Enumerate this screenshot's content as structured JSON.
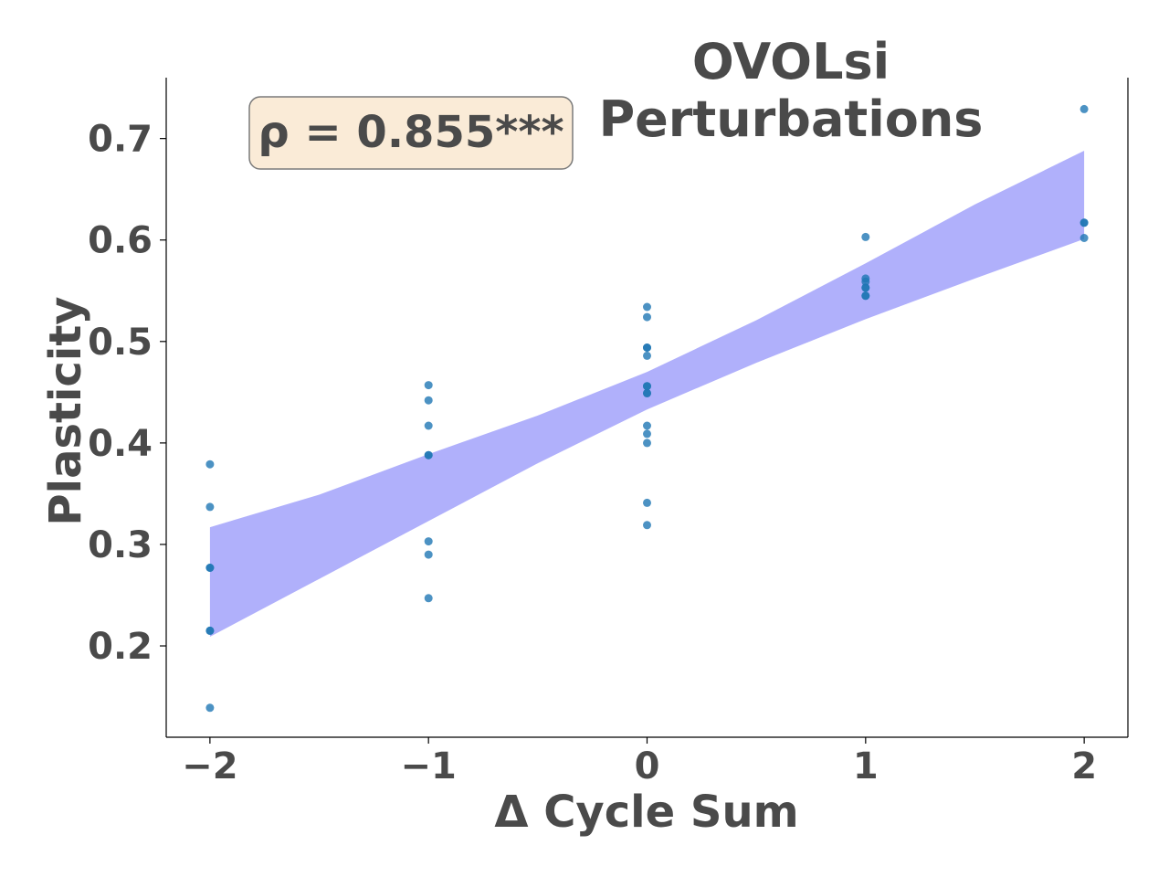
{
  "chart_data": {
    "type": "scatter",
    "title_lines": [
      "OVOLsi",
      "Perturbations"
    ],
    "xlabel": "Δ Cycle Sum",
    "ylabel": "Plasticity",
    "xlim": [
      -2.2,
      2.2
    ],
    "ylim": [
      0.11,
      0.76
    ],
    "xticks": [
      {
        "value": -2,
        "label": "−2"
      },
      {
        "value": -1,
        "label": "−1"
      },
      {
        "value": 0,
        "label": "0"
      },
      {
        "value": 1,
        "label": "1"
      },
      {
        "value": 2,
        "label": "2"
      }
    ],
    "yticks": [
      {
        "value": 0.2,
        "label": "0.2"
      },
      {
        "value": 0.3,
        "label": "0.3"
      },
      {
        "value": 0.4,
        "label": "0.4"
      },
      {
        "value": 0.5,
        "label": "0.5"
      },
      {
        "value": 0.6,
        "label": "0.6"
      },
      {
        "value": 0.7,
        "label": "0.7"
      }
    ],
    "points": [
      {
        "x": -2,
        "y": 0.379
      },
      {
        "x": -2,
        "y": 0.337
      },
      {
        "x": -2,
        "y": 0.277
      },
      {
        "x": -2,
        "y": 0.277
      },
      {
        "x": -2,
        "y": 0.215
      },
      {
        "x": -2,
        "y": 0.215
      },
      {
        "x": -2,
        "y": 0.139
      },
      {
        "x": -1,
        "y": 0.457
      },
      {
        "x": -1,
        "y": 0.442
      },
      {
        "x": -1,
        "y": 0.417
      },
      {
        "x": -1,
        "y": 0.388
      },
      {
        "x": -1,
        "y": 0.388
      },
      {
        "x": -1,
        "y": 0.303
      },
      {
        "x": -1,
        "y": 0.29
      },
      {
        "x": -1,
        "y": 0.247
      },
      {
        "x": 0,
        "y": 0.534
      },
      {
        "x": 0,
        "y": 0.524
      },
      {
        "x": 0,
        "y": 0.494
      },
      {
        "x": 0,
        "y": 0.494
      },
      {
        "x": 0,
        "y": 0.486
      },
      {
        "x": 0,
        "y": 0.456
      },
      {
        "x": 0,
        "y": 0.456
      },
      {
        "x": 0,
        "y": 0.449
      },
      {
        "x": 0,
        "y": 0.449
      },
      {
        "x": 0,
        "y": 0.417
      },
      {
        "x": 0,
        "y": 0.409
      },
      {
        "x": 0,
        "y": 0.4
      },
      {
        "x": 0,
        "y": 0.341
      },
      {
        "x": 0,
        "y": 0.319
      },
      {
        "x": 1,
        "y": 0.603
      },
      {
        "x": 1,
        "y": 0.562
      },
      {
        "x": 1,
        "y": 0.559
      },
      {
        "x": 1,
        "y": 0.553
      },
      {
        "x": 1,
        "y": 0.553
      },
      {
        "x": 1,
        "y": 0.545
      },
      {
        "x": 1,
        "y": 0.545
      },
      {
        "x": 2,
        "y": 0.729
      },
      {
        "x": 2,
        "y": 0.617
      },
      {
        "x": 2,
        "y": 0.617
      },
      {
        "x": 2,
        "y": 0.602
      }
    ],
    "confidence_band": {
      "x": [
        -2,
        -1.5,
        -1,
        -0.5,
        0,
        0.5,
        1,
        1.5,
        2
      ],
      "upper": [
        0.317,
        0.349,
        0.389,
        0.427,
        0.47,
        0.521,
        0.577,
        0.635,
        0.688
      ],
      "lower": [
        0.209,
        0.266,
        0.323,
        0.38,
        0.433,
        0.479,
        0.522,
        0.562,
        0.601
      ]
    },
    "annotation": "ρ = 0.855***",
    "colors": {
      "points": "#1f77b4",
      "band": "#b0b0fb",
      "annotation_bg": "#faebd7",
      "text": "#4a4a4a"
    }
  }
}
